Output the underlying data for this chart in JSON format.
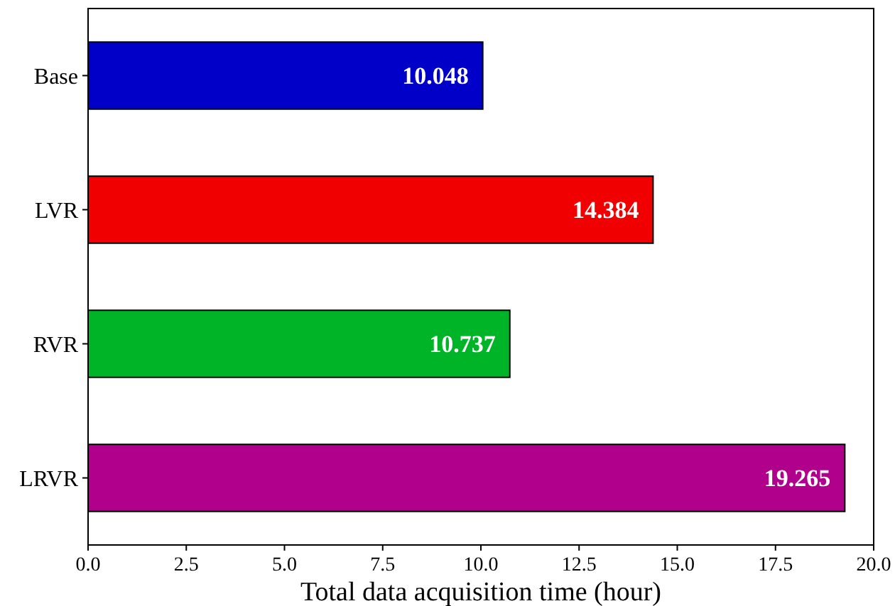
{
  "chart_data": {
    "type": "bar",
    "orientation": "horizontal",
    "xlabel": "Total data acquisition time (hour)",
    "categories": [
      "Base",
      "LVR",
      "RVR",
      "LRVR"
    ],
    "values": [
      10.048,
      14.384,
      10.737,
      19.265
    ],
    "colors": [
      "#0000c8",
      "#f00000",
      "#00b428",
      "#b0008c"
    ],
    "xlim": [
      0,
      20
    ],
    "xticks": [
      {
        "value": 0,
        "label": "0.0"
      },
      {
        "value": 2.5,
        "label": "2.5"
      },
      {
        "value": 5,
        "label": "5.0"
      },
      {
        "value": 7.5,
        "label": "7.5"
      },
      {
        "value": 10,
        "label": "10.0"
      },
      {
        "value": 12.5,
        "label": "12.5"
      },
      {
        "value": 15,
        "label": "15.0"
      },
      {
        "value": 17.5,
        "label": "17.5"
      },
      {
        "value": 20,
        "label": "20.0"
      }
    ],
    "data_labels": true
  }
}
